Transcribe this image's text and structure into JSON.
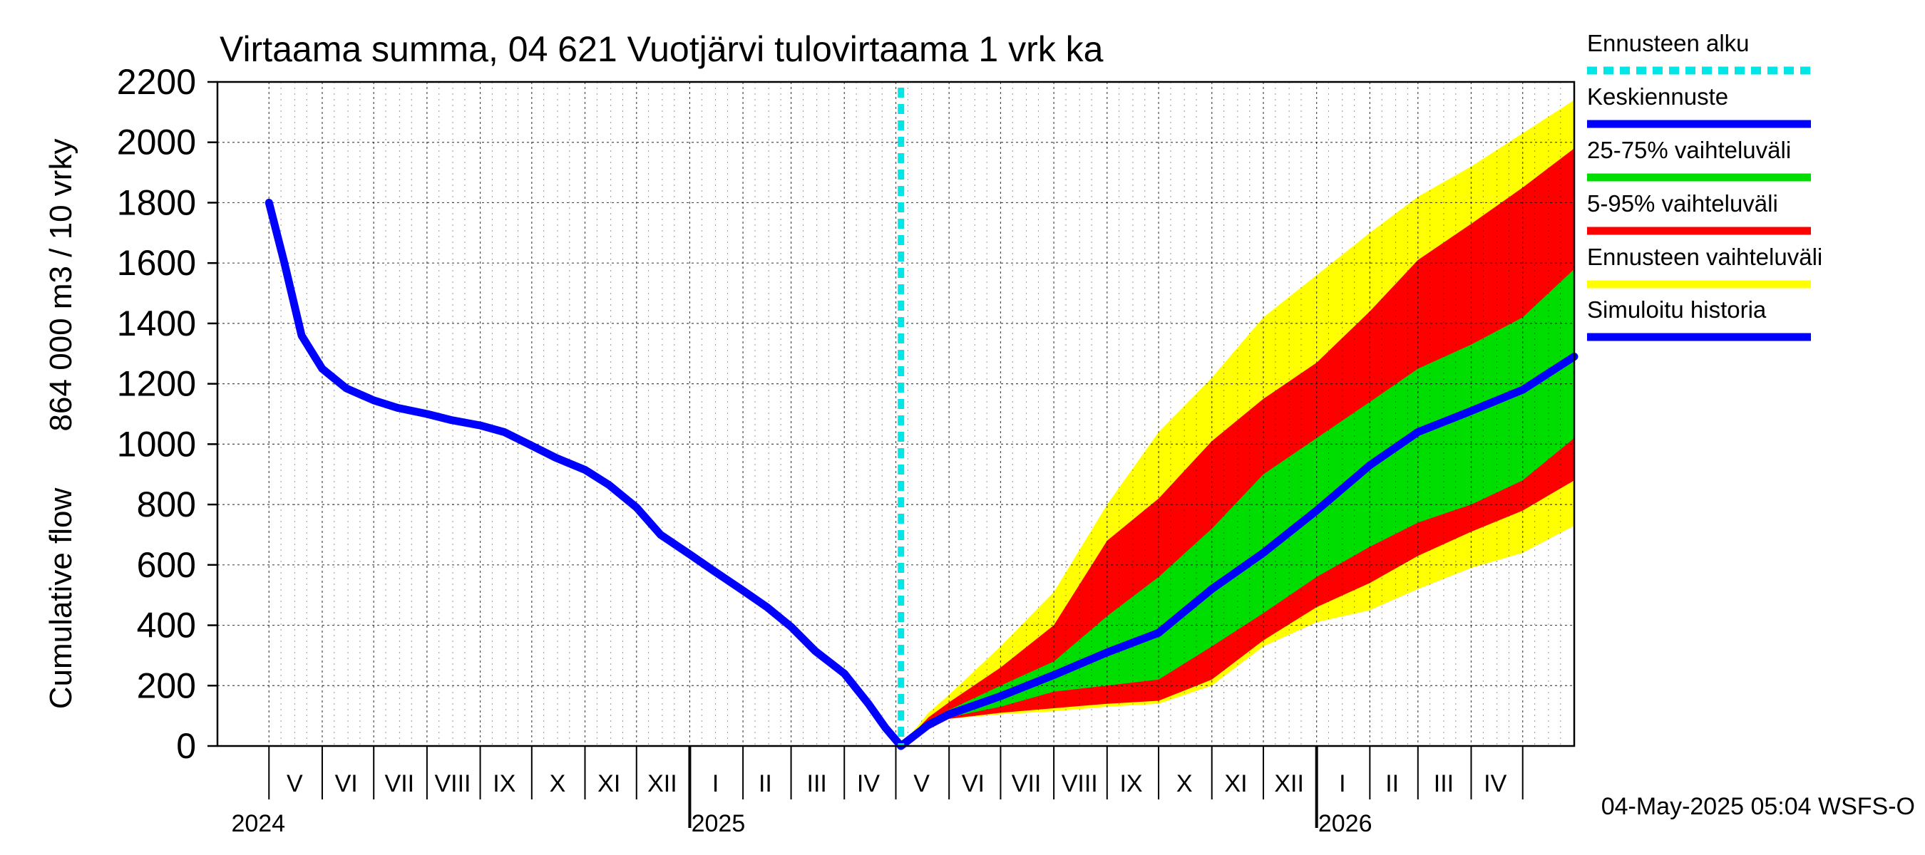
{
  "chart_data": {
    "type": "area",
    "title": "Virtaama summa, 04 621 Vuotjärvi tulovirtaama 1 vrk ka",
    "ylabel_lines": [
      "Cumulative flow",
      "864 000 m3 / 10 vrky"
    ],
    "footer": "04-May-2025 05:04 WSFS-O",
    "ylim": [
      0,
      2200
    ],
    "yticks": [
      0,
      200,
      400,
      600,
      800,
      1000,
      1200,
      1400,
      1600,
      1800,
      2000,
      2200
    ],
    "xlim": [
      "2024-04-01",
      "2026-05-31"
    ],
    "forecast_start": "2025-05-04",
    "month_labels": [
      {
        "label": "V",
        "date": "2024-05-16"
      },
      {
        "label": "VI",
        "date": "2024-06-15"
      },
      {
        "label": "VII",
        "date": "2024-07-16"
      },
      {
        "label": "VIII",
        "date": "2024-08-16"
      },
      {
        "label": "IX",
        "date": "2024-09-15"
      },
      {
        "label": "X",
        "date": "2024-10-16"
      },
      {
        "label": "XI",
        "date": "2024-11-15"
      },
      {
        "label": "XII",
        "date": "2024-12-16"
      },
      {
        "label": "I",
        "date": "2025-01-16"
      },
      {
        "label": "II",
        "date": "2025-02-14"
      },
      {
        "label": "III",
        "date": "2025-03-16"
      },
      {
        "label": "IV",
        "date": "2025-04-15"
      },
      {
        "label": "V",
        "date": "2025-05-16"
      },
      {
        "label": "VI",
        "date": "2025-06-15"
      },
      {
        "label": "VII",
        "date": "2025-07-16"
      },
      {
        "label": "VIII",
        "date": "2025-08-16"
      },
      {
        "label": "IX",
        "date": "2025-09-15"
      },
      {
        "label": "X",
        "date": "2025-10-16"
      },
      {
        "label": "XI",
        "date": "2025-11-15"
      },
      {
        "label": "XII",
        "date": "2025-12-16"
      },
      {
        "label": "I",
        "date": "2026-01-16"
      },
      {
        "label": "II",
        "date": "2026-02-14"
      },
      {
        "label": "III",
        "date": "2026-03-16"
      },
      {
        "label": "IV",
        "date": "2026-04-15"
      }
    ],
    "year_labels": [
      {
        "label": "2024",
        "date": "2024-05-01"
      },
      {
        "label": "2025",
        "date": "2025-01-01"
      },
      {
        "label": "2026",
        "date": "2026-01-01"
      }
    ],
    "legend": [
      {
        "label": "Ennusteen alku",
        "color": "#00e5e5",
        "style": "dashed"
      },
      {
        "label": "Keskiennuste",
        "color": "#0000ff",
        "style": "solid"
      },
      {
        "label": "25-75% vaihteluväli",
        "color": "#00dd00",
        "style": "solid"
      },
      {
        "label": "5-95% vaihteluväli",
        "color": "#ff0000",
        "style": "solid"
      },
      {
        "label": "Ennusteen vaihteluväli",
        "color": "#ffff00",
        "style": "solid"
      },
      {
        "label": "Simuloitu historia",
        "color": "#0000ff",
        "style": "solid"
      }
    ],
    "colors": {
      "history": "#0000ff",
      "median": "#0000ff",
      "p25_75": "#00dd00",
      "p5_95": "#ff0000",
      "minmax": "#ffff00",
      "forecast_start": "#00e5e5"
    },
    "history": {
      "x": [
        "2024-05-01",
        "2024-05-10",
        "2024-05-20",
        "2024-06-01",
        "2024-06-15",
        "2024-07-01",
        "2024-07-15",
        "2024-08-01",
        "2024-08-15",
        "2024-09-01",
        "2024-09-15",
        "2024-10-01",
        "2024-10-15",
        "2024-11-01",
        "2024-11-15",
        "2024-12-01",
        "2024-12-15",
        "2025-01-01",
        "2025-01-15",
        "2025-02-01",
        "2025-02-15",
        "2025-03-01",
        "2025-03-15",
        "2025-04-01",
        "2025-04-15",
        "2025-04-25",
        "2025-05-04"
      ],
      "y": [
        1800,
        1600,
        1360,
        1250,
        1185,
        1145,
        1120,
        1100,
        1080,
        1062,
        1040,
        995,
        955,
        915,
        865,
        790,
        700,
        635,
        580,
        515,
        460,
        395,
        315,
        240,
        140,
        60,
        0
      ]
    },
    "forecast": {
      "x": [
        "2025-05-04",
        "2025-05-20",
        "2025-06-01",
        "2025-07-01",
        "2025-08-01",
        "2025-09-01",
        "2025-10-01",
        "2025-11-01",
        "2025-12-01",
        "2026-01-01",
        "2026-02-01",
        "2026-03-01",
        "2026-04-01",
        "2026-05-01",
        "2026-05-31"
      ],
      "median": [
        0,
        70,
        105,
        165,
        235,
        310,
        375,
        520,
        640,
        780,
        930,
        1040,
        1110,
        1180,
        1290
      ],
      "p25": [
        0,
        60,
        95,
        130,
        180,
        200,
        220,
        330,
        440,
        560,
        660,
        740,
        800,
        880,
        1020
      ],
      "p75": [
        0,
        85,
        120,
        200,
        280,
        430,
        560,
        720,
        900,
        1020,
        1140,
        1250,
        1330,
        1420,
        1580
      ],
      "p5": [
        0,
        55,
        90,
        110,
        125,
        140,
        150,
        220,
        350,
        460,
        540,
        630,
        710,
        780,
        880
      ],
      "p95": [
        0,
        95,
        145,
        260,
        400,
        680,
        820,
        1010,
        1150,
        1270,
        1440,
        1610,
        1730,
        1850,
        1980
      ],
      "min": [
        0,
        55,
        90,
        105,
        115,
        130,
        140,
        200,
        330,
        410,
        450,
        520,
        590,
        640,
        730
      ],
      "max": [
        0,
        110,
        170,
        330,
        510,
        800,
        1040,
        1220,
        1420,
        1560,
        1700,
        1820,
        1920,
        2030,
        2140
      ]
    }
  }
}
